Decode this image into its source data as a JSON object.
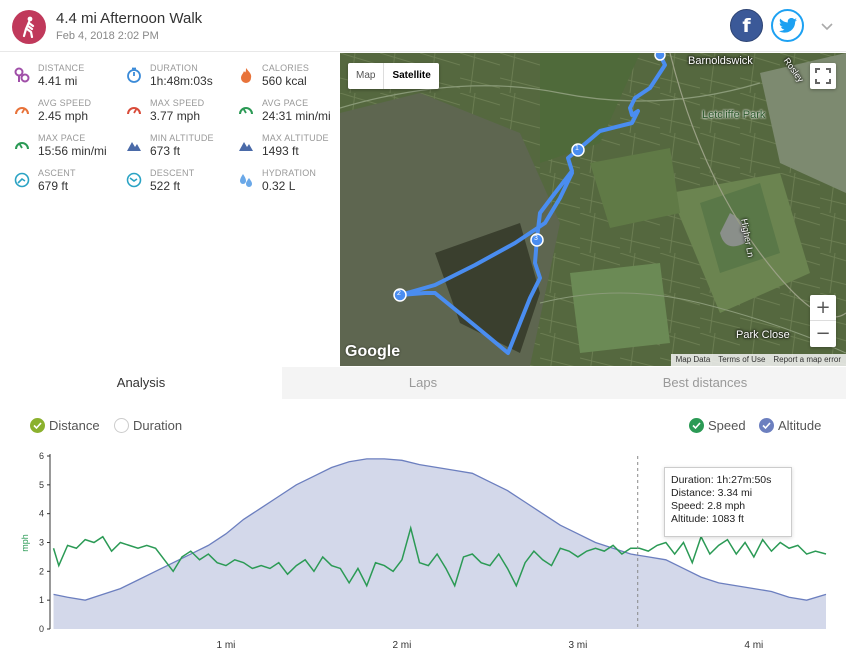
{
  "header": {
    "title": "4.4 mi Afternoon Walk",
    "date": "Feb 4, 2018 2:02 PM",
    "facebook_glyph": "f"
  },
  "stats": [
    {
      "label": "DISTANCE",
      "value": "4.41 mi",
      "icon": "distance-icon",
      "color": "#a04fa8"
    },
    {
      "label": "DURATION",
      "value": "1h:48m:03s",
      "icon": "stopwatch-icon",
      "color": "#3a8ad8"
    },
    {
      "label": "CALORIES",
      "value": "560 kcal",
      "icon": "flame-icon",
      "color": "#e8733a"
    },
    {
      "label": "AVG SPEED",
      "value": "2.45 mph",
      "icon": "speedometer-icon",
      "color": "#e8733a"
    },
    {
      "label": "MAX SPEED",
      "value": "3.77 mph",
      "icon": "speedometer-icon",
      "color": "#d94c3a"
    },
    {
      "label": "AVG PACE",
      "value": "24:31 min/mi",
      "icon": "pace-icon",
      "color": "#2b9a55"
    },
    {
      "label": "MAX PACE",
      "value": "15:56 min/mi",
      "icon": "pace-icon",
      "color": "#2b9a55"
    },
    {
      "label": "MIN ALTITUDE",
      "value": "673 ft",
      "icon": "mountain-icon",
      "color": "#4a6aa8"
    },
    {
      "label": "MAX ALTITUDE",
      "value": "1493 ft",
      "icon": "mountain-icon",
      "color": "#4a6aa8"
    },
    {
      "label": "ASCENT",
      "value": "679 ft",
      "icon": "ascent-icon",
      "color": "#2aa3c4"
    },
    {
      "label": "DESCENT",
      "value": "522 ft",
      "icon": "descent-icon",
      "color": "#2aa3c4"
    },
    {
      "label": "HYDRATION",
      "value": "0.32 L",
      "icon": "water-drops-icon",
      "color": "#6aa8e8"
    }
  ],
  "map": {
    "mode_map": "Map",
    "mode_satellite": "Satellite",
    "zoom_in": "+",
    "zoom_out": "−",
    "google": "Google",
    "attrib": [
      "Map Data",
      "Terms of Use",
      "Report a map error"
    ],
    "labels": {
      "town": "Barnoldswick",
      "park": "Letcliffe Park",
      "close": "Park Close",
      "lane": "Higher Ln",
      "road": "Rosley"
    },
    "markers": [
      "1",
      "2",
      "3"
    ],
    "route_color": "#4a8df0"
  },
  "tabs": [
    "Analysis",
    "Laps",
    "Best distances"
  ],
  "toggles": {
    "distance": "Distance",
    "duration": "Duration",
    "speed": "Speed",
    "altitude": "Altitude"
  },
  "tooltip": {
    "duration": "Duration: 1h:27m:50s",
    "distance": "Distance: 3.34 mi",
    "speed": "Speed: 2.8 mph",
    "altitude": "Altitude: 1083 ft"
  },
  "chart_data": {
    "type": "line",
    "ylabel": "mph",
    "yticks": [
      0,
      1,
      2,
      3,
      4,
      5,
      6
    ],
    "xticks": [
      "1 mi",
      "2 mi",
      "3 mi",
      "4 mi"
    ],
    "xlim": [
      0,
      4.41
    ],
    "ylim": [
      0,
      6
    ],
    "cursor_x": 3.34,
    "series": [
      {
        "name": "Speed",
        "color": "#2b9a55",
        "x": [
          0.02,
          0.05,
          0.1,
          0.15,
          0.2,
          0.25,
          0.3,
          0.35,
          0.4,
          0.45,
          0.5,
          0.55,
          0.6,
          0.65,
          0.7,
          0.75,
          0.8,
          0.85,
          0.9,
          0.95,
          1.0,
          1.05,
          1.1,
          1.15,
          1.2,
          1.25,
          1.3,
          1.35,
          1.4,
          1.45,
          1.5,
          1.55,
          1.6,
          1.65,
          1.7,
          1.75,
          1.8,
          1.85,
          1.9,
          1.95,
          2.0,
          2.05,
          2.1,
          2.15,
          2.2,
          2.25,
          2.3,
          2.35,
          2.4,
          2.45,
          2.5,
          2.55,
          2.6,
          2.65,
          2.7,
          2.75,
          2.8,
          2.85,
          2.9,
          2.95,
          3.0,
          3.05,
          3.1,
          3.15,
          3.2,
          3.25,
          3.3,
          3.35,
          3.4,
          3.45,
          3.5,
          3.55,
          3.6,
          3.65,
          3.7,
          3.75,
          3.8,
          3.85,
          3.9,
          3.95,
          4.0,
          4.05,
          4.1,
          4.15,
          4.2,
          4.25,
          4.3,
          4.35,
          4.41
        ],
        "values": [
          2.8,
          2.2,
          2.9,
          2.8,
          3.1,
          3.0,
          3.2,
          2.7,
          3.0,
          2.9,
          2.8,
          2.9,
          2.8,
          2.4,
          2.0,
          2.5,
          2.7,
          2.4,
          2.6,
          2.3,
          2.2,
          2.4,
          2.3,
          2.1,
          2.2,
          2.1,
          2.3,
          1.9,
          2.2,
          2.4,
          2.0,
          2.5,
          2.2,
          2.1,
          1.6,
          2.1,
          1.5,
          2.3,
          2.2,
          2.0,
          2.4,
          3.5,
          2.3,
          2.2,
          2.6,
          2.1,
          1.5,
          2.5,
          2.6,
          2.3,
          2.2,
          2.6,
          2.1,
          1.5,
          2.3,
          2.7,
          2.4,
          2.2,
          2.8,
          2.7,
          2.5,
          2.7,
          2.8,
          2.7,
          2.9,
          2.6,
          2.8,
          2.8,
          2.7,
          2.9,
          3.0,
          2.6,
          3.0,
          2.3,
          3.2,
          2.6,
          2.9,
          3.1,
          2.6,
          3.0,
          2.5,
          3.1,
          2.7,
          3.0,
          2.8,
          2.9,
          2.6,
          2.7,
          2.6
        ]
      },
      {
        "name": "Altitude",
        "color": "#6c7fbf",
        "x": [
          0.02,
          0.1,
          0.2,
          0.3,
          0.4,
          0.5,
          0.6,
          0.7,
          0.8,
          0.9,
          1.0,
          1.1,
          1.2,
          1.3,
          1.4,
          1.5,
          1.6,
          1.7,
          1.8,
          1.9,
          2.0,
          2.1,
          2.2,
          2.3,
          2.4,
          2.5,
          2.6,
          2.7,
          2.8,
          2.9,
          3.0,
          3.1,
          3.2,
          3.3,
          3.4,
          3.5,
          3.6,
          3.7,
          3.8,
          3.9,
          4.0,
          4.1,
          4.2,
          4.3,
          4.41
        ],
        "values": [
          1.2,
          1.1,
          1.0,
          1.2,
          1.4,
          1.7,
          2.0,
          2.3,
          2.6,
          2.9,
          3.3,
          3.8,
          4.2,
          4.6,
          5.0,
          5.3,
          5.6,
          5.8,
          5.9,
          5.9,
          5.85,
          5.7,
          5.6,
          5.5,
          5.4,
          5.1,
          4.8,
          4.4,
          4.0,
          3.6,
          3.3,
          3.0,
          2.8,
          2.6,
          2.5,
          2.4,
          2.1,
          1.8,
          1.6,
          1.5,
          1.4,
          1.3,
          1.1,
          1.0,
          1.2
        ]
      }
    ]
  }
}
